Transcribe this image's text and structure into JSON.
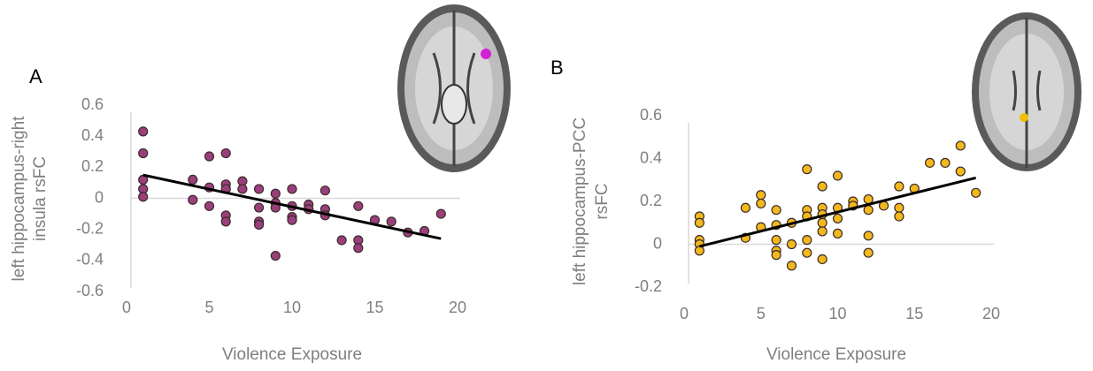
{
  "chart_data": [
    {
      "type": "scatter",
      "panel_label": "A",
      "ylabel": [
        "left hippocampus-right",
        "insula rsFC"
      ],
      "xlabel": "Violence Exposure",
      "xlim": [
        0,
        20
      ],
      "ylim": [
        -0.6,
        0.6
      ],
      "xticks": [
        0,
        5,
        10,
        15,
        20
      ],
      "yticks": [
        0.6,
        0.4,
        0.2,
        0,
        -0.2,
        -0.4,
        -0.6
      ],
      "color": "#9b3f7c",
      "x": [
        1,
        1,
        1,
        1,
        1,
        4,
        4,
        5,
        5,
        5,
        6,
        6,
        6,
        6,
        6,
        7,
        7,
        8,
        8,
        8,
        8,
        9,
        9,
        9,
        9,
        10,
        10,
        10,
        10,
        11,
        11,
        12,
        12,
        12,
        13,
        14,
        14,
        14,
        15,
        16,
        17,
        18,
        19
      ],
      "y": [
        0.43,
        0.29,
        0.12,
        0.06,
        0.01,
        0.12,
        -0.01,
        0.27,
        0.07,
        -0.05,
        0.29,
        0.09,
        0.06,
        -0.11,
        -0.15,
        0.11,
        0.06,
        0.06,
        -0.06,
        -0.15,
        -0.17,
        0.03,
        -0.03,
        -0.06,
        -0.37,
        0.06,
        -0.05,
        -0.12,
        -0.14,
        -0.04,
        -0.07,
        0.05,
        -0.07,
        -0.11,
        -0.27,
        -0.05,
        -0.27,
        -0.32,
        -0.14,
        -0.15,
        -0.22,
        -0.21,
        -0.1
      ],
      "trendline": {
        "x": [
          1,
          19
        ],
        "y": [
          0.15,
          -0.26
        ]
      }
    },
    {
      "type": "scatter",
      "panel_label": "B",
      "ylabel": [
        "left hippocampus-PCC",
        "rsFC"
      ],
      "xlabel": "Violence Exposure",
      "xlim": [
        0,
        20
      ],
      "ylim": [
        -0.2,
        0.6
      ],
      "xticks": [
        0,
        5,
        10,
        15,
        20
      ],
      "yticks": [
        0.6,
        0.4,
        0.2,
        0,
        -0.2
      ],
      "color": "#f2b81c",
      "x": [
        1,
        1,
        1,
        1,
        1,
        4,
        4,
        5,
        5,
        5,
        6,
        6,
        6,
        6,
        6,
        7,
        7,
        7,
        8,
        8,
        8,
        8,
        8,
        9,
        9,
        9,
        9,
        9,
        9,
        10,
        10,
        10,
        10,
        11,
        11,
        12,
        12,
        12,
        12,
        13,
        14,
        14,
        14,
        15,
        16,
        17,
        18,
        18,
        19
      ],
      "y": [
        0.13,
        0.1,
        0.02,
        0.0,
        -0.03,
        0.17,
        0.03,
        0.23,
        0.19,
        0.08,
        0.16,
        0.09,
        0.02,
        -0.03,
        -0.05,
        0.1,
        0.0,
        -0.1,
        0.35,
        0.16,
        0.13,
        0.02,
        -0.04,
        0.27,
        0.17,
        0.14,
        0.1,
        0.06,
        -0.07,
        0.32,
        0.17,
        0.12,
        0.05,
        0.2,
        0.18,
        0.21,
        0.16,
        0.04,
        -0.04,
        0.18,
        0.27,
        0.17,
        0.13,
        0.26,
        0.38,
        0.38,
        0.46,
        0.34,
        0.24
      ],
      "trendline": {
        "x": [
          1,
          19
        ],
        "y": [
          -0.01,
          0.31
        ]
      }
    }
  ]
}
